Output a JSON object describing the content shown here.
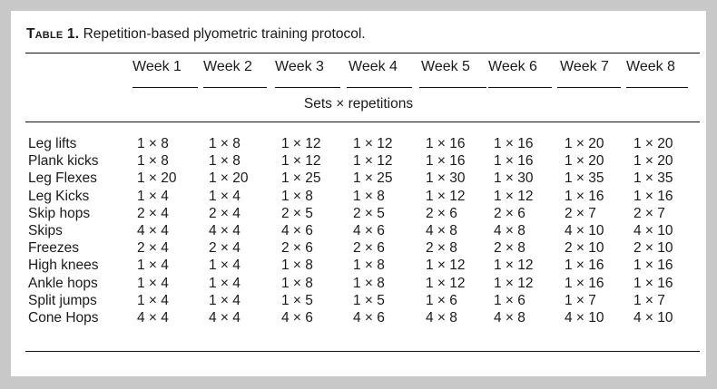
{
  "caption": {
    "label": "Table 1.",
    "text": "Repetition-based plyometric training protocol."
  },
  "columns": [
    "Week 1",
    "Week 2",
    "Week 3",
    "Week 4",
    "Week 5",
    "Week 6",
    "Week 7",
    "Week 8"
  ],
  "spanner": "Sets × repetitions",
  "rows": [
    {
      "name": "Leg lifts",
      "values": [
        "1 × 8",
        "1 × 8",
        "1 × 12",
        "1 × 12",
        "1 × 16",
        "1 × 16",
        "1 × 20",
        "1 × 20"
      ]
    },
    {
      "name": "Plank kicks",
      "values": [
        "1 × 8",
        "1 × 8",
        "1 × 12",
        "1 × 12",
        "1 × 16",
        "1 × 16",
        "1 × 20",
        "1 × 20"
      ]
    },
    {
      "name": "Leg Flexes",
      "values": [
        "1 × 20",
        "1 × 20",
        "1 × 25",
        "1 × 25",
        "1 × 30",
        "1 × 30",
        "1 × 35",
        "1 × 35"
      ]
    },
    {
      "name": "Leg Kicks",
      "values": [
        "1 × 4",
        "1 × 4",
        "1 × 8",
        "1 × 8",
        "1 × 12",
        "1 × 12",
        "1 × 16",
        "1 × 16"
      ]
    },
    {
      "name": "Skip hops",
      "values": [
        "2 × 4",
        "2 × 4",
        "2 × 5",
        "2 × 5",
        "2 × 6",
        "2 × 6",
        "2 × 7",
        "2 × 7"
      ]
    },
    {
      "name": "Skips",
      "values": [
        "4 × 4",
        "4 × 4",
        "4 × 6",
        "4 × 6",
        "4 × 8",
        "4 × 8",
        "4 × 10",
        "4 × 10"
      ]
    },
    {
      "name": "Freezes",
      "values": [
        "2 × 4",
        "2 × 4",
        "2 × 6",
        "2 × 6",
        "2 × 8",
        "2 × 8",
        "2 × 10",
        "2 × 10"
      ]
    },
    {
      "name": "High knees",
      "values": [
        "1 × 4",
        "1 × 4",
        "1 × 8",
        "1 × 8",
        "1 × 12",
        "1 × 12",
        "1 × 16",
        "1 × 16"
      ]
    },
    {
      "name": "Ankle hops",
      "values": [
        "1 × 4",
        "1 × 4",
        "1 × 8",
        "1 × 8",
        "1 × 12",
        "1 × 12",
        "1 × 16",
        "1 × 16"
      ]
    },
    {
      "name": "Split jumps",
      "values": [
        "1 × 4",
        "1 × 4",
        "1 × 5",
        "1 × 5",
        "1 × 6",
        "1 × 6",
        "1 × 7",
        "1 × 7"
      ]
    },
    {
      "name": "Cone Hops",
      "values": [
        "4 × 4",
        "4 × 4",
        "4 × 6",
        "4 × 6",
        "4 × 8",
        "4 × 8",
        "4 × 10",
        "4 × 10"
      ]
    }
  ]
}
